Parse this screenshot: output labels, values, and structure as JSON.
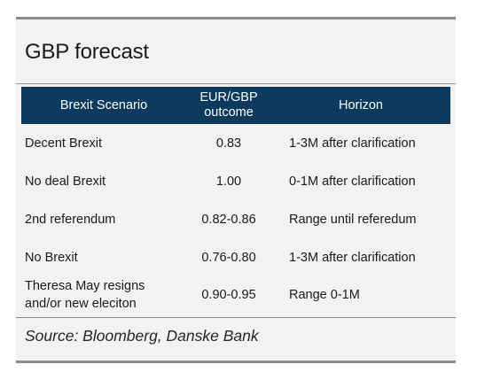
{
  "title": "GBP forecast",
  "table": {
    "headers": {
      "scenario": "Brexit Scenario",
      "outcome_line1": "EUR/GBP",
      "outcome_line2": "outcome",
      "horizon": "Horizon"
    },
    "rows": [
      {
        "scenario": "Decent Brexit",
        "outcome": "0.83",
        "horizon": "1-3M after clarification"
      },
      {
        "scenario": "No deal Brexit",
        "outcome": "1.00",
        "horizon": "0-1M after clarification"
      },
      {
        "scenario": "2nd referendum",
        "outcome": "0.82-0.86",
        "horizon": "Range until referedum"
      },
      {
        "scenario": "No Brexit",
        "outcome": "0.76-0.80",
        "horizon": "1-3M after clarification"
      },
      {
        "scenario_line1": "Theresa May resigns",
        "scenario_line2": "and/or new eleciton",
        "outcome": "0.90-0.95",
        "horizon": "Range 0-1M"
      }
    ]
  },
  "source": "Source: Bloomberg, Danske Bank",
  "colors": {
    "header_bg": "#0b3a5d",
    "panel_bg": "#f2f2f2",
    "rule": "#8c8c8c"
  }
}
